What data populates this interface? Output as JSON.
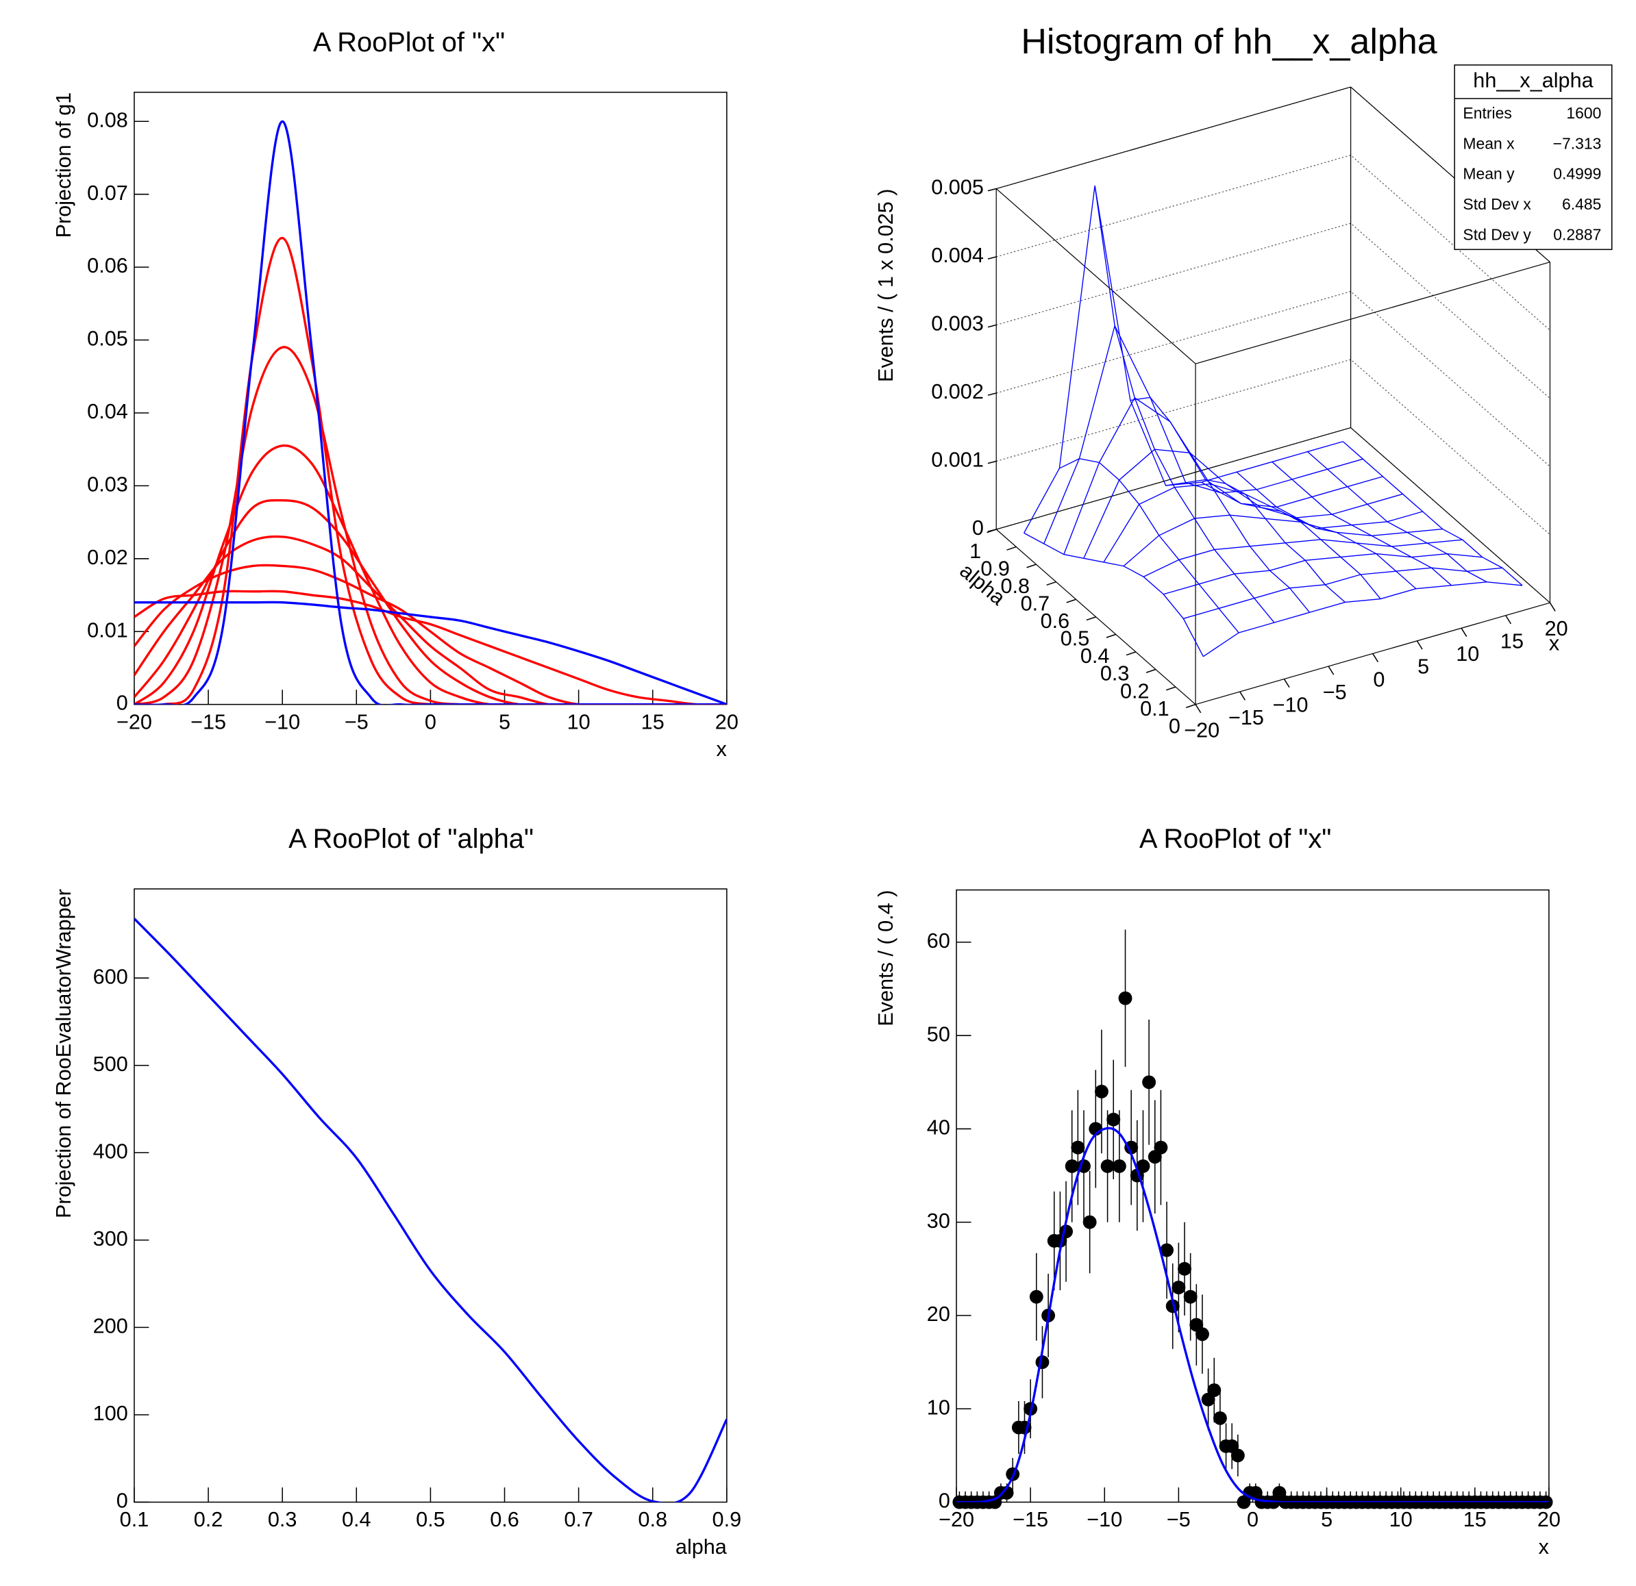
{
  "chart_data": [
    {
      "type": "line",
      "title": "A RooPlot of \"x\"",
      "x_label": "x",
      "y_label": "Projection of g1",
      "x": [
        -20,
        -18,
        -16,
        -14,
        -12,
        -10,
        -8,
        -6,
        -4,
        -2,
        0,
        2,
        4,
        6,
        8,
        10,
        12,
        14,
        16,
        18,
        20
      ],
      "xlim": [
        -20,
        20
      ],
      "ylim": [
        0,
        0.084
      ],
      "xticks": [
        {
          "value": -20,
          "label": "−20"
        },
        {
          "value": -15,
          "label": "−15"
        },
        {
          "value": -10,
          "label": "−10"
        },
        {
          "value": -5,
          "label": "−5"
        },
        0,
        5,
        10,
        15,
        20
      ],
      "yticks": [
        0,
        0.01,
        0.02,
        0.03,
        0.04,
        0.05,
        0.06,
        0.07,
        0.08
      ],
      "series": [
        {
          "color": "#ff0000",
          "values": [
            0.012,
            0.0145,
            0.015,
            0.0155,
            0.0155,
            0.0155,
            0.015,
            0.0145,
            0.0135,
            0.012,
            0.011,
            0.0095,
            0.008,
            0.0065,
            0.005,
            0.0035,
            0.002,
            0.001,
            0.0005,
            0,
            0
          ]
        },
        {
          "color": "#ff0000",
          "values": [
            0.008,
            0.013,
            0.016,
            0.018,
            0.019,
            0.019,
            0.0185,
            0.017,
            0.015,
            0.013,
            0.01,
            0.007,
            0.005,
            0.003,
            0.001,
            0,
            0,
            0,
            0,
            0,
            0
          ]
        },
        {
          "color": "#ff0000",
          "values": [
            0.004,
            0.01,
            0.015,
            0.02,
            0.0225,
            0.023,
            0.022,
            0.02,
            0.016,
            0.012,
            0.008,
            0.005,
            0.002,
            0.001,
            0,
            0,
            0,
            0,
            0,
            0,
            0
          ]
        },
        {
          "color": "#ff0000",
          "values": [
            0.001,
            0.006,
            0.013,
            0.021,
            0.027,
            0.028,
            0.027,
            0.023,
            0.017,
            0.011,
            0.006,
            0.003,
            0.001,
            0,
            0,
            0,
            0,
            0,
            0,
            0,
            0
          ]
        },
        {
          "color": "#ff0000",
          "values": [
            0,
            0.003,
            0.01,
            0.022,
            0.032,
            0.0355,
            0.033,
            0.025,
            0.016,
            0.008,
            0.003,
            0.001,
            0,
            0,
            0,
            0,
            0,
            0,
            0,
            0,
            0
          ]
        },
        {
          "color": "#ff0000",
          "values": [
            0,
            0.001,
            0.006,
            0.02,
            0.041,
            0.049,
            0.043,
            0.026,
            0.011,
            0.003,
            0.0005,
            0,
            0,
            0,
            0,
            0,
            0,
            0,
            0,
            0,
            0
          ]
        },
        {
          "color": "#ff0000",
          "values": [
            0,
            0,
            0.002,
            0.015,
            0.048,
            0.064,
            0.047,
            0.02,
            0.006,
            0.001,
            0,
            0,
            0,
            0,
            0,
            0,
            0,
            0,
            0,
            0,
            0
          ]
        },
        {
          "color": "#0000ff",
          "values": [
            0.014,
            0.014,
            0.014,
            0.014,
            0.014,
            0.014,
            0.0137,
            0.0133,
            0.013,
            0.0125,
            0.012,
            0.0115,
            0.0105,
            0.0095,
            0.0085,
            0.0073,
            0.006,
            0.0045,
            0.003,
            0.0015,
            0
          ]
        },
        {
          "color": "#0000ff",
          "values": [
            0,
            0,
            0.0009,
            0.0108,
            0.0485,
            0.08,
            0.0485,
            0.0108,
            0.0009,
            0,
            0,
            0,
            0,
            0,
            0,
            0,
            0,
            0,
            0,
            0,
            0
          ]
        }
      ]
    },
    {
      "type": "surface",
      "title": "Histogram of hh__x_alpha",
      "x_label": "x",
      "y_label": "alpha",
      "z_label": "Events / ( 1 x 0.025 )",
      "color": "#0000ff",
      "x": [
        -18,
        -14,
        -10,
        -6,
        -2,
        2,
        6,
        10,
        14,
        18
      ],
      "y": [
        0.05,
        0.15,
        0.25,
        0.35,
        0.45,
        0.55,
        0.65,
        0.75,
        0.85,
        0.95
      ],
      "values": [
        [
          0.0005,
          0.0007,
          0.0007,
          0.0007,
          0.0007,
          0.0006,
          0.0006,
          0.0005,
          0.0004,
          0.0002
        ],
        [
          0.0008,
          0.0008,
          0.0008,
          0.0008,
          0.0007,
          0.0007,
          0.0006,
          0.0005,
          0.0003,
          0.0002
        ],
        [
          0.0009,
          0.0009,
          0.0009,
          0.0008,
          0.0008,
          0.0007,
          0.0006,
          0.0004,
          0.0003,
          0.0001
        ],
        [
          0.0009,
          0.001,
          0.001,
          0.0009,
          0.0008,
          0.0007,
          0.0005,
          0.0003,
          0.0002,
          0.0001
        ],
        [
          0.0008,
          0.0011,
          0.0012,
          0.0011,
          0.0009,
          0.0007,
          0.0004,
          0.0002,
          0.0001,
          0
        ],
        [
          0.0006,
          0.0013,
          0.0014,
          0.0013,
          0.001,
          0.0006,
          0.0002,
          0.0001,
          0,
          0
        ],
        [
          0.0004,
          0.0014,
          0.0017,
          0.0015,
          0.0009,
          0.0004,
          0.0001,
          0,
          0,
          0
        ],
        [
          0.0002,
          0.0014,
          0.0022,
          0.0017,
          0.0007,
          0.0002,
          0,
          0,
          0,
          0
        ],
        [
          0.0001,
          0.0012,
          0.003,
          0.0018,
          0.0004,
          0.0001,
          0,
          0,
          0,
          0
        ],
        [
          0,
          0.0008,
          0.0048,
          0.0015,
          0.0001,
          0,
          0,
          0,
          0,
          0
        ]
      ],
      "xlim": [
        -20,
        20
      ],
      "ylim": [
        0,
        1
      ],
      "zlim": [
        0,
        0.005
      ],
      "xticks": [
        {
          "value": -20,
          "label": "−20"
        },
        {
          "value": -15,
          "label": "−15"
        },
        {
          "value": -10,
          "label": "−10"
        },
        {
          "value": -5,
          "label": "−5"
        },
        0,
        5,
        10,
        15,
        20
      ],
      "yticks": [
        0,
        0.1,
        0.2,
        0.3,
        0.4,
        0.5,
        0.6,
        0.7,
        0.8,
        0.9,
        1
      ],
      "zticks": [
        0,
        0.001,
        0.002,
        0.003,
        0.004,
        0.005
      ],
      "stats": {
        "title": "hh__x_alpha",
        "rows": [
          {
            "label": "Entries",
            "value": "1600"
          },
          {
            "label": "Mean x",
            "value": "−7.313"
          },
          {
            "label": "Mean y",
            "value": "0.4999"
          },
          {
            "label": "Std Dev x",
            "value": "6.485"
          },
          {
            "label": "Std Dev y",
            "value": "0.2887"
          }
        ]
      }
    },
    {
      "type": "line",
      "title": "A RooPlot of \"alpha\"",
      "x_label": "alpha",
      "y_label": "Projection of RooEvaluatorWrapper",
      "x": [
        0.1,
        0.15,
        0.2,
        0.25,
        0.3,
        0.35,
        0.4,
        0.45,
        0.5,
        0.55,
        0.6,
        0.65,
        0.7,
        0.75,
        0.8,
        0.85,
        0.9
      ],
      "xlim": [
        0.1,
        0.9
      ],
      "ylim": [
        0,
        702
      ],
      "xticks": [
        0.1,
        0.2,
        0.3,
        0.4,
        0.5,
        0.6,
        0.7,
        0.8,
        0.9
      ],
      "yticks": [
        0,
        100,
        200,
        300,
        400,
        500,
        600
      ],
      "series": [
        {
          "color": "#0000ff",
          "values": [
            668,
            625,
            580,
            535,
            490,
            440,
            394,
            330,
            265,
            215,
            172,
            120,
            70,
            28,
            1,
            10,
            95
          ]
        }
      ]
    },
    {
      "type": "scatter",
      "title": "A RooPlot of \"x\"",
      "x_label": "x",
      "y_label": "Events / ( 0.4 )",
      "xlim": [
        -20,
        20
      ],
      "ylim": [
        0,
        65.6
      ],
      "xticks": [
        {
          "value": -20,
          "label": "−20"
        },
        {
          "value": -15,
          "label": "−15"
        },
        {
          "value": -10,
          "label": "−10"
        },
        {
          "value": -5,
          "label": "−5"
        },
        0,
        5,
        10,
        15,
        20
      ],
      "yticks": [
        0,
        10,
        20,
        30,
        40,
        50,
        60
      ],
      "series": [
        {
          "type": "errorbar",
          "color": "#000000",
          "x": [
            -19.8,
            -19.4,
            -19,
            -18.6,
            -18.2,
            -17.8,
            -17.4,
            -17,
            -16.6,
            -16.2,
            -15.8,
            -15.4,
            -15,
            -14.6,
            -14.2,
            -13.8,
            -13.4,
            -13,
            -12.6,
            -12.2,
            -11.8,
            -11.4,
            -11,
            -10.6,
            -10.2,
            -9.8,
            -9.4,
            -9,
            -8.6,
            -8.2,
            -7.8,
            -7.4,
            -7,
            -6.6,
            -6.2,
            -5.8,
            -5.4,
            -5,
            -4.6,
            -4.2,
            -3.8,
            -3.4,
            -3,
            -2.6,
            -2.2,
            -1.8,
            -1.4,
            -1,
            -0.6,
            -0.2,
            0.2,
            0.6,
            1,
            1.4,
            1.8,
            2.2,
            2.6,
            3,
            3.4,
            3.8,
            4.2,
            4.6,
            5,
            5.4,
            5.8,
            6.2,
            6.6,
            7,
            7.4,
            7.8,
            8.2,
            8.6,
            9,
            9.4,
            9.8,
            10.2,
            10.6,
            11,
            11.4,
            11.8,
            12.2,
            12.6,
            13,
            13.4,
            13.8,
            14.2,
            14.6,
            15,
            15.4,
            15.8,
            16.2,
            16.6,
            17,
            17.4,
            17.8,
            18.2,
            18.6,
            19,
            19.4,
            19.8
          ],
          "values": [
            0,
            0,
            0,
            0,
            0,
            0,
            0,
            1,
            1,
            3,
            8,
            8,
            10,
            22,
            15,
            20,
            28,
            28,
            29,
            36,
            38,
            36,
            30,
            40,
            44,
            36,
            41,
            36,
            54,
            38,
            35,
            36,
            45,
            37,
            38,
            27,
            21,
            23,
            25,
            22,
            19,
            18,
            11,
            12,
            9,
            6,
            6,
            5,
            0,
            1,
            1,
            0,
            0,
            0,
            1,
            0,
            0,
            0,
            0,
            0,
            0,
            0,
            0,
            0,
            0,
            0,
            0,
            0,
            0,
            0,
            0,
            0,
            0,
            0,
            0,
            0,
            0,
            0,
            0,
            0,
            0,
            0,
            0,
            0,
            0,
            0,
            0,
            0,
            0,
            0,
            0,
            0,
            0,
            0,
            0,
            0,
            0,
            0,
            0,
            0
          ],
          "errors": [
            1.15,
            1.15,
            1.15,
            1.15,
            1.15,
            1.15,
            1.15,
            1,
            1,
            1.73,
            2.83,
            2.83,
            3.16,
            4.69,
            3.87,
            4.47,
            5.29,
            5.29,
            5.39,
            6,
            6.16,
            6,
            5.48,
            6.32,
            6.63,
            6,
            6.4,
            6,
            7.35,
            6.16,
            5.92,
            6,
            6.71,
            6.08,
            6.16,
            5.2,
            4.58,
            4.8,
            5,
            4.69,
            4.36,
            4.24,
            3.32,
            3.46,
            3,
            2.45,
            2.45,
            2.24,
            1.15,
            1,
            1,
            1.15,
            1.15,
            1.15,
            1,
            1.15,
            1.15,
            1.15,
            1.15,
            1.15,
            1.15,
            1.15,
            1.15,
            1.15,
            1.15,
            1.15,
            1.15,
            1.15,
            1.15,
            1.15,
            1.15,
            1.15,
            1.15,
            1.15,
            1.15,
            1.15,
            1.15,
            1.15,
            1.15,
            1.15,
            1.15,
            1.15,
            1.15,
            1.15,
            1.15,
            1.15,
            1.15,
            1.15,
            1.15,
            1.15,
            1.15,
            1.15,
            1.15,
            1.15,
            1.15,
            1.15,
            1.15,
            1.15,
            1.15,
            1.15
          ]
        },
        {
          "type": "line",
          "color": "#0000ff",
          "x": [
            -20,
            -19,
            -18,
            -17,
            -16,
            -15,
            -14,
            -13,
            -12,
            -11,
            -10,
            -9,
            -8,
            -7,
            -6,
            -5,
            -4,
            -3,
            -2,
            -1,
            0,
            1,
            2,
            3,
            4,
            5,
            6,
            7,
            8,
            9,
            10,
            11,
            12,
            13,
            14,
            15,
            16,
            17,
            18,
            19,
            20
          ],
          "values": [
            0,
            0,
            0.1,
            0.8,
            3.5,
            9.5,
            18,
            27,
            34,
            38.5,
            40,
            39.5,
            36.5,
            31.5,
            25.5,
            19,
            13,
            8,
            4,
            1.5,
            0.4,
            0.1,
            0,
            0,
            0,
            0,
            0,
            0,
            0,
            0,
            0,
            0,
            0,
            0,
            0,
            0,
            0,
            0,
            0,
            0,
            0
          ]
        }
      ]
    }
  ]
}
